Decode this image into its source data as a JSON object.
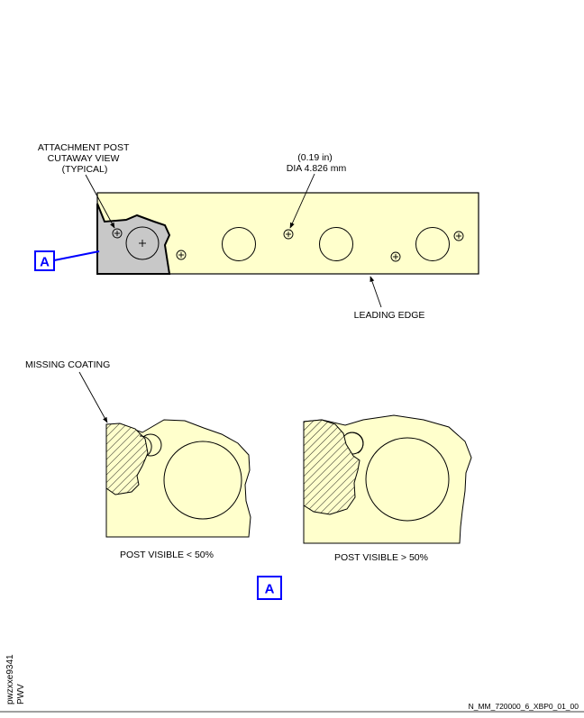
{
  "figure": {
    "callouts": {
      "attachment_post": [
        "ATTACHMENT POST",
        "CUTAWAY VIEW",
        "(TYPICAL)"
      ],
      "hole_size_in": "(0.19 in)",
      "hole_size_mm": "DIA 4.826 mm",
      "leading_edge": "LEADING EDGE",
      "missing_coating": "MISSING COATING"
    },
    "detail_ref": "A",
    "captions": {
      "left": "POST VISIBLE < 50%",
      "right": "POST VISIBLE > 50%"
    },
    "side_id": {
      "line1": "pwzxxe9341",
      "line2": "PWV"
    },
    "footer_code": "N_MM_720000_6_XBP0_01_00",
    "colors": {
      "part_fill": "#ffffcc",
      "cutaway_fill": "#c8c8c8",
      "ref_blue": "#0000ff"
    }
  }
}
